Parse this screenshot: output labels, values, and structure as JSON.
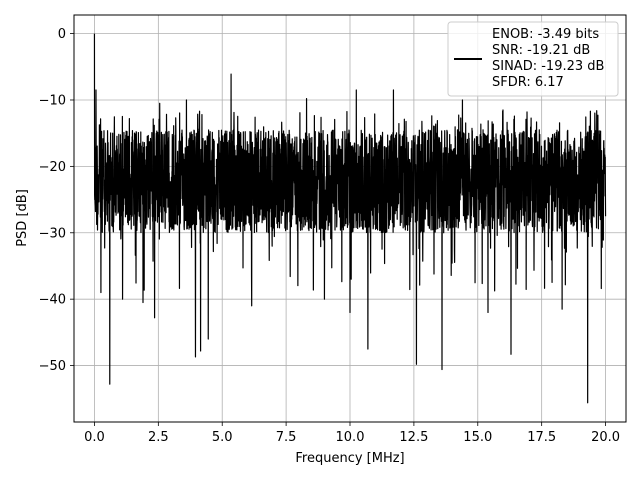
{
  "chart_data": {
    "type": "line",
    "xlabel": "Frequency [MHz]",
    "ylabel": "PSD [dB]",
    "xlim": [
      -0.8,
      20.8
    ],
    "ylim": [
      -58.5,
      2.8
    ],
    "x_ticks": [
      0.0,
      2.5,
      5.0,
      7.5,
      10.0,
      12.5,
      15.0,
      17.5,
      20.0
    ],
    "x_tick_labels": [
      "0.0",
      "2.5",
      "5.0",
      "7.5",
      "10.0",
      "12.5",
      "15.0",
      "17.5",
      "20.0"
    ],
    "y_ticks": [
      0,
      -10,
      -20,
      -30,
      -40,
      -50
    ],
    "y_tick_labels": [
      "0",
      "−10",
      "−20",
      "−30",
      "−40",
      "−50"
    ],
    "grid": true,
    "legend_position": "top-right",
    "line_color": "#000000",
    "series": [
      {
        "legend_lines": [
          "ENOB: -3.49 bits",
          "SNR: -19.21 dB",
          "SINAD: -19.23 dB",
          "SFDR: 6.17"
        ],
        "x_range": [
          0.0,
          20.0
        ],
        "baseline_db": -20,
        "upper_envelope_db": -14.5,
        "lower_envelope_db": -30,
        "peaks": [
          {
            "x": 0.0,
            "y": 0.0
          },
          {
            "x": 0.06,
            "y": -8.5
          },
          {
            "x": 2.55,
            "y": -10.5
          },
          {
            "x": 3.6,
            "y": -10.0
          },
          {
            "x": 5.35,
            "y": -6.1
          },
          {
            "x": 8.3,
            "y": -9.8
          },
          {
            "x": 10.25,
            "y": -8.5
          },
          {
            "x": 11.7,
            "y": -8.5
          },
          {
            "x": 14.4,
            "y": -10.0
          },
          {
            "x": 16.3,
            "y": -8.8
          },
          {
            "x": 19.7,
            "y": -12.3
          }
        ],
        "dips": [
          {
            "x": 0.25,
            "y": -39.0
          },
          {
            "x": 0.6,
            "y": -52.8
          },
          {
            "x": 1.1,
            "y": -40.0
          },
          {
            "x": 1.9,
            "y": -40.5
          },
          {
            "x": 2.35,
            "y": -42.8
          },
          {
            "x": 3.95,
            "y": -48.7
          },
          {
            "x": 4.15,
            "y": -47.8
          },
          {
            "x": 4.45,
            "y": -46.0
          },
          {
            "x": 6.15,
            "y": -41.0
          },
          {
            "x": 9.0,
            "y": -40.0
          },
          {
            "x": 10.0,
            "y": -42.0
          },
          {
            "x": 10.7,
            "y": -47.5
          },
          {
            "x": 12.6,
            "y": -49.8
          },
          {
            "x": 13.6,
            "y": -50.6
          },
          {
            "x": 15.4,
            "y": -42.0
          },
          {
            "x": 16.3,
            "y": -48.3
          },
          {
            "x": 18.3,
            "y": -41.5
          },
          {
            "x": 19.3,
            "y": -55.6
          }
        ]
      }
    ]
  }
}
